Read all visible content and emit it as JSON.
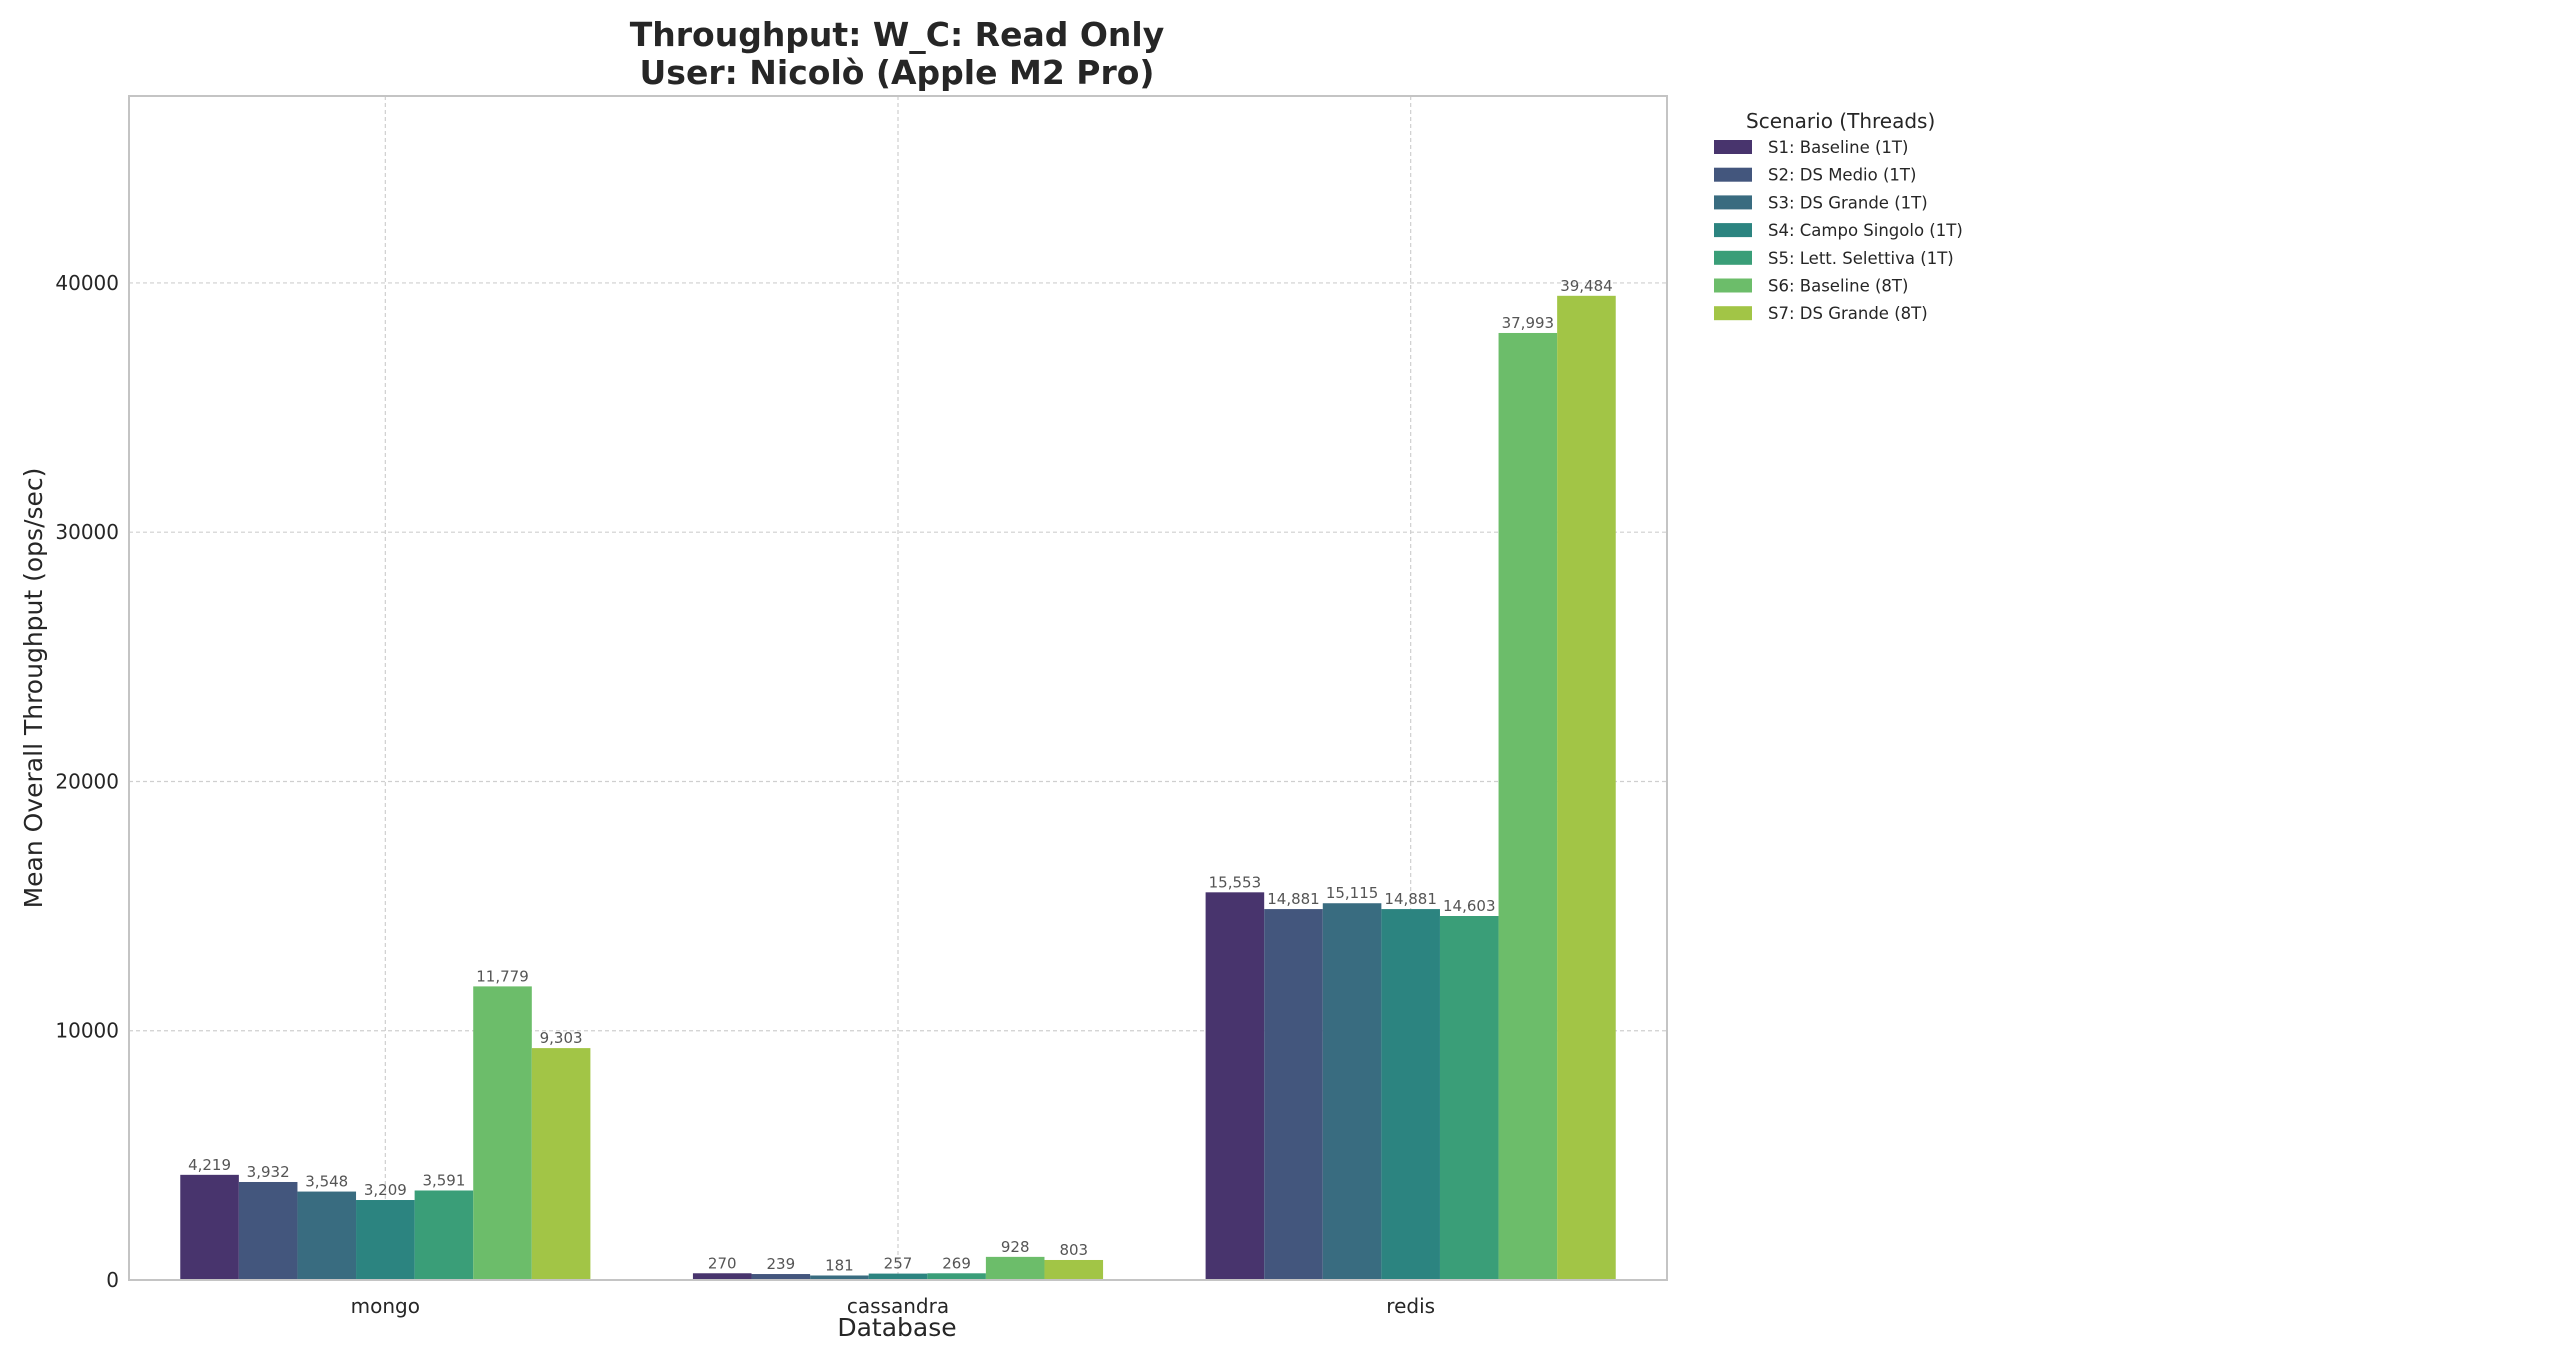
{
  "chart_data": {
    "type": "bar",
    "title": "Throughput: W_C: Read Only",
    "subtitle": "User: Nicolò (Apple M2 Pro)",
    "xlabel": "Database",
    "ylabel": "Mean Overall Throughput (ops/sec)",
    "ylim": [
      0,
      47500
    ],
    "yticks": [
      0,
      10000,
      20000,
      30000,
      40000
    ],
    "ytick_labels": [
      "0",
      "10000",
      "20000",
      "30000",
      "40000"
    ],
    "grid": true,
    "legend_title": "Scenario (Threads)",
    "legend_position": "outside-top-right",
    "categories": [
      "mongo",
      "cassandra",
      "redis"
    ],
    "series": [
      {
        "name": "S1: Baseline (1T)",
        "color": "#48346d",
        "values": [
          4219,
          270,
          15553
        ],
        "labels": [
          "4,219",
          "270",
          "15,553"
        ]
      },
      {
        "name": "S2: DS Medio (1T)",
        "color": "#43567d",
        "values": [
          3932,
          239,
          14881
        ],
        "labels": [
          "3,932",
          "239",
          "14,881"
        ]
      },
      {
        "name": "S3: DS Grande (1T)",
        "color": "#396c80",
        "values": [
          3548,
          181,
          15115
        ],
        "labels": [
          "3,548",
          "181",
          "15,115"
        ]
      },
      {
        "name": "S4: Campo Singolo (1T)",
        "color": "#2c8480",
        "values": [
          3209,
          257,
          14881
        ],
        "labels": [
          "3,209",
          "257",
          "14,881"
        ]
      },
      {
        "name": "S5: Lett. Selettiva (1T)",
        "color": "#3a9e78",
        "values": [
          3591,
          269,
          14603
        ],
        "labels": [
          "3,591",
          "269",
          "14,603"
        ]
      },
      {
        "name": "S6: Baseline (8T)",
        "color": "#6cbd6a",
        "values": [
          11779,
          928,
          37993
        ],
        "labels": [
          "11,779",
          "928",
          "37,993"
        ]
      },
      {
        "name": "S7: DS Grande (8T)",
        "color": "#a2c546",
        "values": [
          9303,
          803,
          39484
        ],
        "labels": [
          "9,303",
          "803",
          "39,484"
        ]
      }
    ]
  }
}
